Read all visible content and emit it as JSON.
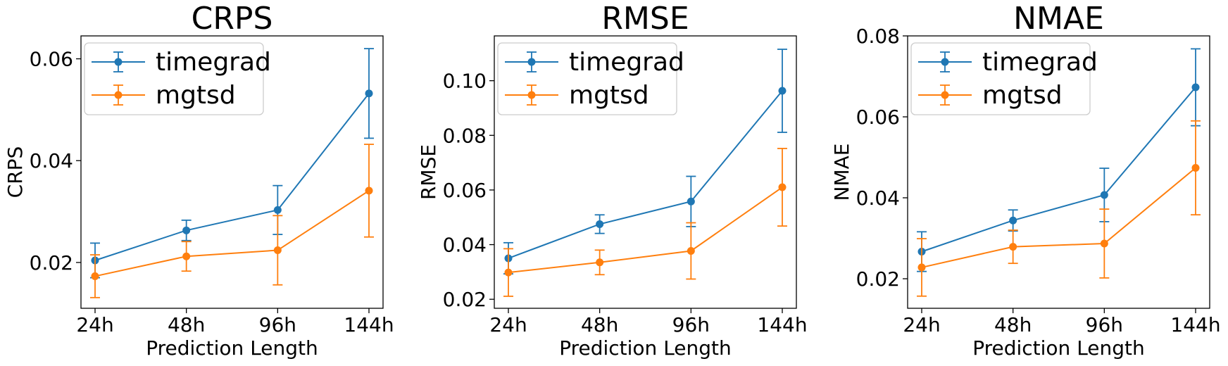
{
  "colors": {
    "timegrad": "#1f77b4",
    "mgtsd": "#ff7f0e"
  },
  "chart_data": [
    {
      "type": "line",
      "title": "CRPS",
      "xlabel": "Prediction Length",
      "ylabel": "CRPS",
      "categories": [
        "24h",
        "48h",
        "96h",
        "144h"
      ],
      "ylim": [
        0.011,
        0.0645
      ],
      "yticks": [
        0.02,
        0.04,
        0.06
      ],
      "ytick_labels": [
        "0.02",
        "0.04",
        "0.06"
      ],
      "legend": "top-left",
      "series": [
        {
          "name": "timegrad",
          "values": [
            0.0204,
            0.0263,
            0.0303,
            0.0532
          ],
          "err": [
            0.0034,
            0.002,
            0.0048,
            0.0088
          ]
        },
        {
          "name": "mgtsd",
          "values": [
            0.0173,
            0.0212,
            0.0224,
            0.0341
          ],
          "err": [
            0.0042,
            0.0029,
            0.0068,
            0.0091
          ]
        }
      ]
    },
    {
      "type": "line",
      "title": "RMSE",
      "xlabel": "Prediction Length",
      "ylabel": "RMSE",
      "categories": [
        "24h",
        "48h",
        "96h",
        "144h"
      ],
      "ylim": [
        0.0167,
        0.1164
      ],
      "yticks": [
        0.02,
        0.04,
        0.06,
        0.08,
        0.1
      ],
      "ytick_labels": [
        "0.02",
        "0.04",
        "0.06",
        "0.08",
        "0.10"
      ],
      "legend": "top-left",
      "series": [
        {
          "name": "timegrad",
          "values": [
            0.035,
            0.0475,
            0.0558,
            0.0963
          ],
          "err": [
            0.0057,
            0.0034,
            0.0092,
            0.0152
          ]
        },
        {
          "name": "mgtsd",
          "values": [
            0.0298,
            0.0335,
            0.0377,
            0.061
          ],
          "err": [
            0.0087,
            0.0045,
            0.0103,
            0.0142
          ]
        }
      ]
    },
    {
      "type": "line",
      "title": "NMAE",
      "xlabel": "Prediction Length",
      "ylabel": "NMAE",
      "categories": [
        "24h",
        "48h",
        "96h",
        "144h"
      ],
      "ylim": [
        0.0127,
        0.08
      ],
      "yticks": [
        0.02,
        0.04,
        0.06,
        0.08
      ],
      "ytick_labels": [
        "0.02",
        "0.04",
        "0.06",
        "0.08"
      ],
      "legend": "top-left",
      "series": [
        {
          "name": "timegrad",
          "values": [
            0.0267,
            0.0344,
            0.0407,
            0.0673
          ],
          "err": [
            0.0049,
            0.0026,
            0.0066,
            0.0095
          ]
        },
        {
          "name": "mgtsd",
          "values": [
            0.0228,
            0.0279,
            0.0287,
            0.0474
          ],
          "err": [
            0.0071,
            0.0041,
            0.0085,
            0.0116
          ]
        }
      ]
    }
  ]
}
